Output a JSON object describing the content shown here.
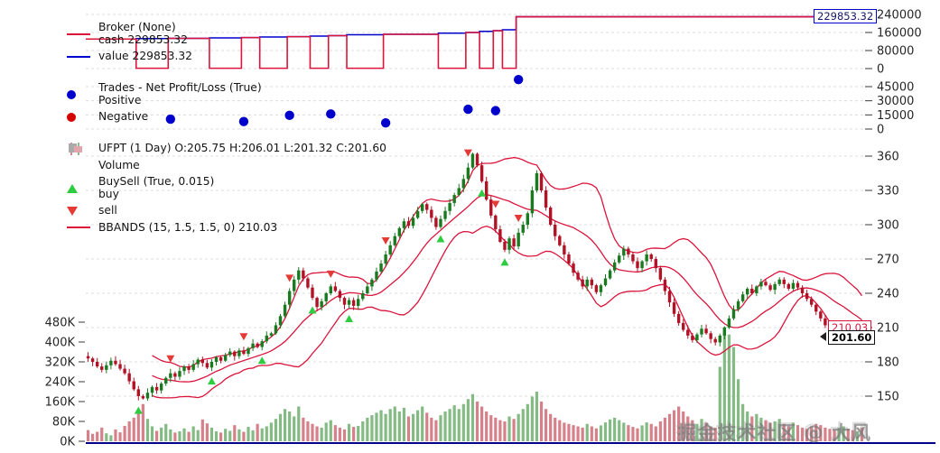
{
  "watermark": "掘金技术社区 @ 大风",
  "legends": {
    "broker": {
      "title": "Broker (None)",
      "cash": "cash 229853.32",
      "value": "value 229853.32"
    },
    "trades": {
      "title": "Trades - Net Profit/Loss (True)",
      "positive": "Positive",
      "negative": "Negative"
    },
    "main": {
      "title": "UFPT (1 Day) O:205.75 H:206.01 L:201.32 C:201.60",
      "volume": "Volume",
      "buysell": "BuySell (True, 0.015)",
      "buy": "buy",
      "sell": "sell",
      "bbands": "BBANDS (15, 1.5, 1.5, 0) 210.03"
    }
  },
  "tags": {
    "broker": "229853.32",
    "bbands": "210.03",
    "last": "201.60"
  },
  "colors": {
    "cash_line": "#dc143c",
    "value_line": "#0000cd",
    "dot_pos": "#0000cd",
    "dot_neg": "#d40000",
    "candle_up": "#1a7a1f",
    "candle_down": "#b11226",
    "vol_up": "#6fae6f",
    "vol_down": "#cf6a76",
    "buy": "#2ecc40",
    "sell": "#e53935",
    "bbands": "#dc143c",
    "grid": "#dcdcdc",
    "spine": "#00008b",
    "axis_text": "#262626"
  },
  "chart_data": {
    "type": "candlestick",
    "title": "UFPT (1 Day)",
    "last_ohlc": {
      "open": 205.75,
      "high": 206.01,
      "low": 201.32,
      "close": 201.6
    },
    "bbands": {
      "period": 15,
      "devfactor": 1.5,
      "last_mid": 210.03
    },
    "broker_final": {
      "cash": 229853.32,
      "value": 229853.32
    },
    "axes": {
      "broker": {
        "ticks": [
          0,
          80000,
          160000,
          240000
        ],
        "labels": [
          "0",
          "80000",
          "160000",
          "240000"
        ]
      },
      "trades": {
        "ticks": [
          0,
          15000,
          30000,
          45000
        ],
        "labels": [
          "0",
          "15000",
          "30000",
          "45000"
        ]
      },
      "price": {
        "ticks": [
          150,
          180,
          210,
          240,
          270,
          300,
          330,
          360
        ]
      },
      "volume": {
        "ticks": [
          0,
          80,
          160,
          240,
          320,
          400,
          480
        ],
        "labels": [
          "0K",
          "80K",
          "160K",
          "240K",
          "320K",
          "400K",
          "480K"
        ]
      }
    },
    "close": [
      183,
      180,
      176,
      173,
      177,
      181,
      178,
      174,
      170,
      163,
      156,
      150,
      148,
      153,
      158,
      155,
      161,
      166,
      170,
      167,
      172,
      176,
      173,
      178,
      182,
      179,
      175,
      180,
      184,
      181,
      186,
      189,
      185,
      190,
      187,
      192,
      196,
      193,
      198,
      203,
      205,
      212,
      220,
      230,
      242,
      252,
      260,
      253,
      245,
      236,
      228,
      233,
      240,
      246,
      242,
      236,
      230,
      234,
      229,
      235,
      240,
      246,
      252,
      259,
      266,
      274,
      282,
      290,
      297,
      303,
      299,
      306,
      312,
      318,
      313,
      306,
      298,
      305,
      312,
      319,
      326,
      332,
      340,
      350,
      362,
      352,
      338,
      322,
      308,
      296,
      285,
      278,
      288,
      281,
      293,
      300,
      310,
      330,
      345,
      330,
      315,
      300,
      290,
      282,
      274,
      266,
      258,
      252,
      246,
      252,
      247,
      241,
      247,
      253,
      260,
      267,
      273,
      279,
      274,
      268,
      262,
      268,
      274,
      270,
      262,
      252,
      242,
      232,
      222,
      214,
      208,
      203,
      199,
      204,
      209,
      205,
      200,
      197,
      203,
      210,
      218,
      226,
      233,
      239,
      244,
      240,
      246,
      250,
      247,
      243,
      248,
      252,
      248,
      244,
      249,
      245,
      240,
      235,
      230,
      224,
      218,
      212,
      206,
      201,
      207,
      213,
      208,
      203,
      205.75,
      201.6
    ],
    "volume_k": [
      45,
      30,
      38,
      55,
      32,
      24,
      48,
      36,
      62,
      80,
      95,
      120,
      150,
      90,
      60,
      42,
      55,
      70,
      48,
      35,
      40,
      52,
      38,
      60,
      45,
      88,
      72,
      55,
      40,
      35,
      50,
      42,
      65,
      48,
      38,
      58,
      44,
      70,
      52,
      60,
      75,
      90,
      110,
      130,
      120,
      100,
      140,
      95,
      80,
      70,
      60,
      55,
      75,
      85,
      65,
      55,
      48,
      70,
      58,
      62,
      80,
      95,
      105,
      115,
      125,
      110,
      130,
      140,
      120,
      135,
      100,
      110,
      125,
      140,
      115,
      95,
      85,
      105,
      120,
      130,
      145,
      130,
      150,
      170,
      190,
      160,
      140,
      120,
      105,
      95,
      85,
      80,
      100,
      90,
      110,
      130,
      150,
      180,
      200,
      160,
      130,
      110,
      95,
      85,
      75,
      70,
      65,
      60,
      55,
      70,
      60,
      52,
      64,
      76,
      88,
      95,
      85,
      75,
      65,
      58,
      52,
      64,
      76,
      70,
      60,
      80,
      95,
      110,
      125,
      140,
      120,
      100,
      85,
      70,
      90,
      75,
      60,
      55,
      300,
      460,
      430,
      380,
      250,
      150,
      120,
      100,
      110,
      95,
      85,
      75,
      80,
      90,
      70,
      60,
      75,
      65,
      55,
      50,
      60,
      70,
      65,
      55,
      50,
      45,
      55,
      60,
      50,
      45,
      40,
      55
    ],
    "buy_indices": [
      11,
      27,
      38,
      49,
      57,
      77,
      86,
      91
    ],
    "sell_indices": [
      18,
      34,
      44,
      53,
      65,
      83,
      89,
      94
    ],
    "trades": [
      {
        "index": 18,
        "pnl": 10500
      },
      {
        "index": 34,
        "pnl": 8000
      },
      {
        "index": 44,
        "pnl": 14500
      },
      {
        "index": 53,
        "pnl": 16000
      },
      {
        "index": 65,
        "pnl": 6500
      },
      {
        "index": 83,
        "pnl": 21000
      },
      {
        "index": 89,
        "pnl": 19500
      },
      {
        "index": 94,
        "pnl": 52500
      }
    ],
    "broker_cash_segments": [
      {
        "f": 0,
        "t": 10,
        "v": 131000
      },
      {
        "f": 11,
        "t": 17,
        "v": 1500
      },
      {
        "f": 18,
        "t": 26,
        "v": 134000
      },
      {
        "f": 27,
        "t": 33,
        "v": 1500
      },
      {
        "f": 34,
        "t": 37,
        "v": 137500
      },
      {
        "f": 38,
        "t": 43,
        "v": 1500
      },
      {
        "f": 44,
        "t": 48,
        "v": 141500
      },
      {
        "f": 49,
        "t": 52,
        "v": 1500
      },
      {
        "f": 53,
        "t": 56,
        "v": 146000
      },
      {
        "f": 57,
        "t": 64,
        "v": 1500
      },
      {
        "f": 65,
        "t": 76,
        "v": 152000
      },
      {
        "f": 77,
        "t": 82,
        "v": 1500
      },
      {
        "f": 83,
        "t": 85,
        "v": 160000
      },
      {
        "f": 86,
        "t": 88,
        "v": 1500
      },
      {
        "f": 89,
        "t": 90,
        "v": 168000
      },
      {
        "f": 91,
        "t": 93,
        "v": 1500
      },
      {
        "f": 94,
        "t": 169,
        "v": 229853.32
      }
    ],
    "broker_value_segments": [
      {
        "f": 0,
        "t": 10,
        "v": 131000
      },
      {
        "f": 11,
        "t": 17,
        "v": 133000
      },
      {
        "f": 18,
        "t": 26,
        "v": 134000
      },
      {
        "f": 27,
        "t": 33,
        "v": 136000
      },
      {
        "f": 34,
        "t": 37,
        "v": 137500
      },
      {
        "f": 38,
        "t": 43,
        "v": 140000
      },
      {
        "f": 44,
        "t": 48,
        "v": 141500
      },
      {
        "f": 49,
        "t": 52,
        "v": 144000
      },
      {
        "f": 53,
        "t": 56,
        "v": 146000
      },
      {
        "f": 57,
        "t": 64,
        "v": 150000
      },
      {
        "f": 65,
        "t": 76,
        "v": 152000
      },
      {
        "f": 77,
        "t": 82,
        "v": 157000
      },
      {
        "f": 83,
        "t": 85,
        "v": 160000
      },
      {
        "f": 86,
        "t": 88,
        "v": 165000
      },
      {
        "f": 89,
        "t": 90,
        "v": 168000
      },
      {
        "f": 91,
        "t": 93,
        "v": 172000
      },
      {
        "f": 94,
        "t": 169,
        "v": 229853.32
      }
    ]
  }
}
